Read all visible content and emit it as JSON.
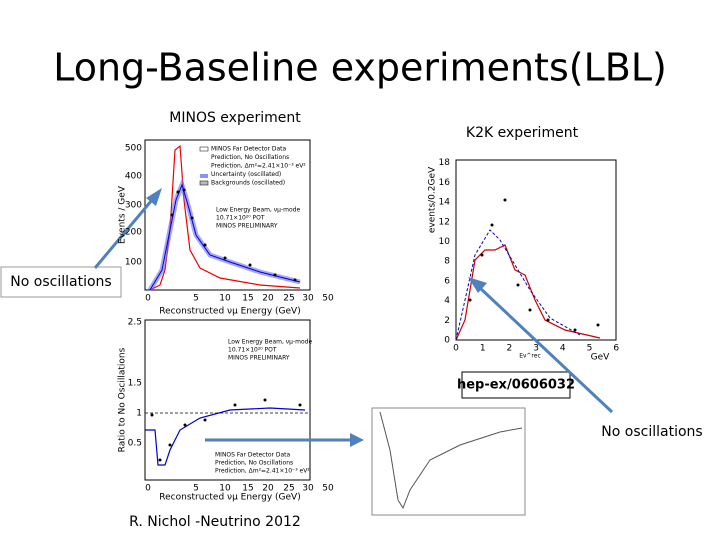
{
  "header": {
    "title": "Long-Baseline experiments(LBL)"
  },
  "minos": {
    "caption": "MINOS experiment",
    "spectrum": {
      "y_label": "Events / GeV",
      "x_label": "Reconstructed νμ Energy (GeV)",
      "y_ticks": [
        "100",
        "200",
        "300",
        "400",
        "500"
      ],
      "x_ticks": [
        "0",
        "5",
        "10",
        "15",
        "20",
        "25",
        "30",
        "50"
      ],
      "legend": [
        "MINOS Far Detector Data",
        "Prediction, No Oscillations",
        "Prediction, Δm²=2.41×10⁻³ eV²",
        "Uncertainty (oscillated)",
        "Backgrounds (oscillated)"
      ],
      "notes": [
        "Low Energy Beam, νμ-mode",
        "10.71×10²⁰ POT",
        "MINOS PRELIMINARY"
      ]
    },
    "ratio": {
      "y_label": "Ratio to No Oscillations",
      "x_label": "Reconstructed νμ Energy (GeV)",
      "y_ticks": [
        "0.5",
        "1",
        "1.5",
        "2.5"
      ],
      "x_ticks": [
        "0",
        "5",
        "10",
        "15",
        "20",
        "25",
        "30",
        "50"
      ],
      "legend": [
        "MINOS Far Detector Data",
        "Prediction, No Oscillations",
        "Prediction, Δm²=2.41×10⁻³ eV²"
      ],
      "notes": [
        "Low Energy Beam, νμ-mode",
        "10.71×10²⁰ POT",
        "MINOS PRELIMINARY"
      ]
    },
    "footer": "R. Nichol -Neutrino 2012"
  },
  "k2k": {
    "caption": "K2K experiment",
    "y_label": "events/0.2GeV",
    "x_label": "Eν^rec",
    "x_unit": "GeV",
    "y_ticks": [
      "0",
      "2",
      "4",
      "6",
      "8",
      "10",
      "12",
      "14",
      "16",
      "18"
    ],
    "x_ticks": [
      "0",
      "1",
      "2",
      "3",
      "4",
      "5",
      "6"
    ],
    "reference": "hep-ex/0606032"
  },
  "callouts": [
    "No oscillations",
    "No oscillations"
  ]
}
